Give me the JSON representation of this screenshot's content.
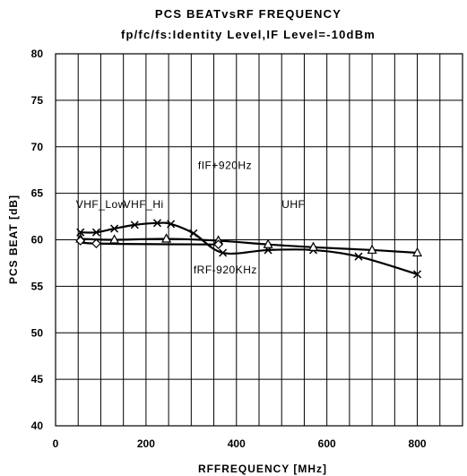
{
  "chart_data": {
    "type": "line",
    "title": "PCS BEATvsRF FREQUENCY",
    "subtitle": "fp/fc/fs:Identity Level,IF Level=-10dBm",
    "xlabel": "RFFREQUENCY [MHz]",
    "ylabel": "PCS BEAT [dB]",
    "xlim": [
      0,
      900
    ],
    "ylim": [
      40,
      80
    ],
    "x_ticks": [
      "0",
      "200",
      "400",
      "600",
      "800"
    ],
    "y_ticks": [
      "40",
      "45",
      "50",
      "55",
      "60",
      "65",
      "70",
      "75",
      "80"
    ],
    "grid": true,
    "x_grid_step": 50,
    "series": [
      {
        "marker": "x",
        "x": [
          55,
          90,
          130,
          175,
          225,
          255,
          305,
          370,
          470,
          570,
          670,
          800
        ],
        "values": [
          60.8,
          60.8,
          61.2,
          61.6,
          61.8,
          61.7,
          60.7,
          58.6,
          58.9,
          58.9,
          58.2,
          56.3
        ]
      },
      {
        "marker": "triangle",
        "x": [
          55,
          130,
          245,
          360,
          470,
          570,
          700,
          800
        ],
        "values": [
          60.1,
          60.0,
          60.1,
          59.9,
          59.5,
          59.2,
          58.9,
          58.6
        ]
      },
      {
        "marker": "diamond",
        "x": [
          55,
          90,
          360
        ],
        "values": [
          59.9,
          59.6,
          59.5
        ]
      }
    ],
    "annotations": [
      {
        "text": "VHF_Low",
        "x": 45,
        "y": 63.4
      },
      {
        "text": "VHF_Hi",
        "x": 150,
        "y": 63.4
      },
      {
        "text": "UHF",
        "x": 500,
        "y": 63.4
      },
      {
        "text": "fIF+920Hz",
        "x": 315,
        "y": 67.6
      },
      {
        "text": "fRF-920KHz",
        "x": 305,
        "y": 56.4
      }
    ]
  }
}
